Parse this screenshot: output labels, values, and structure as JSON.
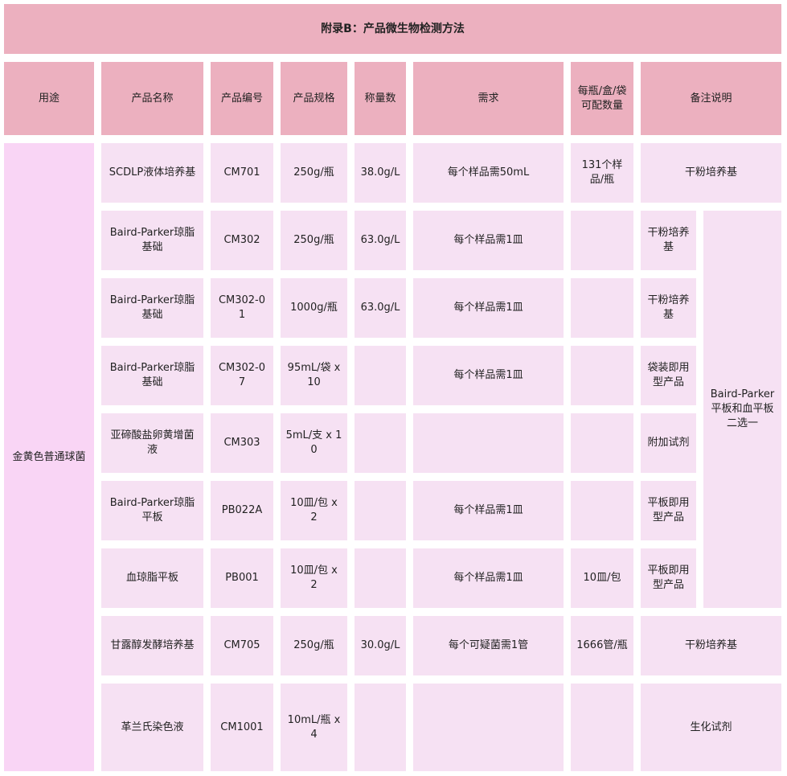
{
  "title": "附录B：产品微生物检测方法",
  "headers": [
    "用途",
    "产品名称",
    "产品编号",
    "产品规格",
    "称量数",
    "需求",
    "每瓶/盒/袋可配数量",
    "备注说明"
  ],
  "use": "金黄色普通球菌",
  "shared_remark": "Baird-Parker平板和血平板二选一",
  "rows": [
    {
      "name": "SCDLP液体培养基",
      "code": "CM701",
      "spec": "250g/瓶",
      "weight": "38.0g/L",
      "demand": "每个样品需50mL",
      "per": "131个样品/瓶",
      "remark": "干粉培养基"
    },
    {
      "name": "Baird-Parker琼脂基础",
      "code": "CM302",
      "spec": "250g/瓶",
      "weight": "63.0g/L",
      "demand": "每个样品需1皿",
      "per": "",
      "sub_remark": "干粉培养基"
    },
    {
      "name": "Baird-Parker琼脂基础",
      "code": "CM302-01",
      "spec": "1000g/瓶",
      "weight": "63.0g/L",
      "demand": "每个样品需1皿",
      "per": "",
      "sub_remark": "干粉培养基"
    },
    {
      "name": "Baird-Parker琼脂基础",
      "code": "CM302-07",
      "spec": "95mL/袋 x 10",
      "weight": "",
      "demand": "每个样品需1皿",
      "per": "",
      "sub_remark": "袋装即用型产品"
    },
    {
      "name": "亚碲酸盐卵黄增菌液",
      "code": "CM303",
      "spec": "5mL/支 x 10",
      "weight": "",
      "demand": "",
      "per": "",
      "sub_remark": "附加试剂"
    },
    {
      "name": "Baird-Parker琼脂平板",
      "code": "PB022A",
      "spec": "10皿/包 x 2",
      "weight": "",
      "demand": "每个样品需1皿",
      "per": "",
      "sub_remark": "平板即用型产品"
    },
    {
      "name": "血琼脂平板",
      "code": "PB001",
      "spec": "10皿/包 x 2",
      "weight": "",
      "demand": "每个样品需1皿",
      "per": "10皿/包",
      "sub_remark": "平板即用型产品"
    },
    {
      "name": "甘露醇发酵培养基",
      "code": "CM705",
      "spec": "250g/瓶",
      "weight": "30.0g/L",
      "demand": "每个可疑菌需1管",
      "per": "1666管/瓶",
      "remark": "干粉培养基"
    },
    {
      "name": "革兰氏染色液",
      "code": "CM1001",
      "spec": "10mL/瓶 x 4",
      "weight": "",
      "demand": "",
      "per": "",
      "remark": "生化试剂"
    }
  ],
  "colors": {
    "header": "#ecb0bf",
    "cell": "#f6e1f3",
    "use_cell": "#f9d5f5"
  }
}
